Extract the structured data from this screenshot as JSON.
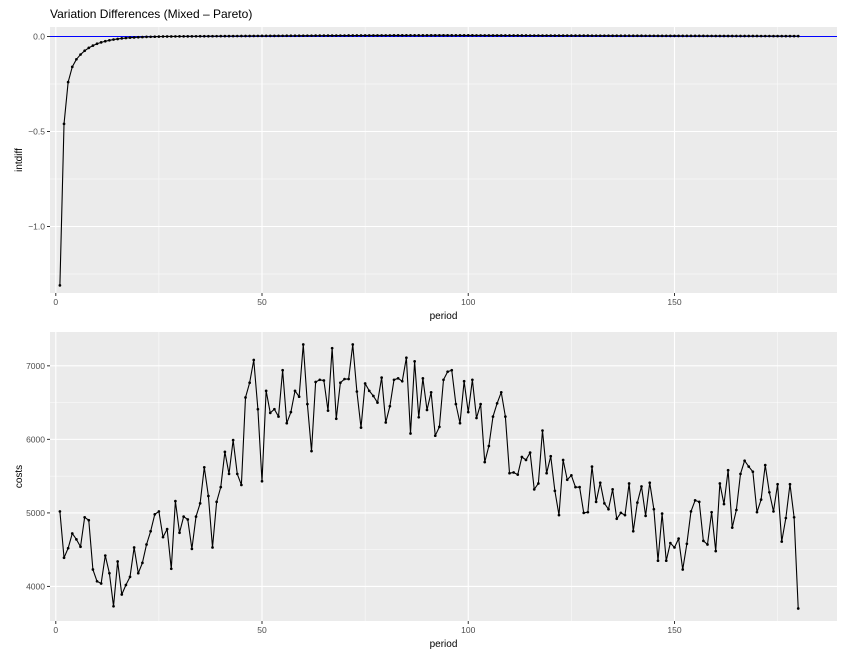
{
  "chart_data": [
    {
      "type": "line",
      "title": "Variation Differences (Mixed – Pareto)",
      "xlabel": "period",
      "ylabel": "intdiff",
      "xlim": [
        -1.4,
        189.4
      ],
      "ylim": [
        -1.35,
        0.05
      ],
      "x_major_ticks": [
        0,
        50,
        100,
        150
      ],
      "x_tick_labels": [
        "0",
        "50",
        "100",
        "150"
      ],
      "x_minor_ticks": [
        25,
        75,
        125,
        175
      ],
      "y_major_ticks": [
        -1.0,
        -0.5,
        0.0
      ],
      "y_tick_labels": [
        "−1.0",
        "−0.5",
        "0.0"
      ],
      "y_minor_ticks": [
        -1.25,
        -0.75,
        -0.25
      ],
      "hline": {
        "y": 0,
        "color": "#0000ff"
      },
      "grid": true,
      "n_points": 180,
      "first_values": [
        -1.31,
        -0.46,
        -0.24,
        -0.16,
        -0.12,
        -0.095,
        -0.075,
        -0.06,
        -0.048,
        -0.038,
        -0.031,
        -0.025,
        -0.02,
        -0.016,
        -0.013,
        -0.01,
        -0.008,
        -0.006,
        -0.005,
        -0.004,
        -0.003,
        -0.002,
        -0.0015,
        -0.001,
        -0.0005
      ],
      "tail_start_x": 26,
      "tail_start_value": 0.0,
      "tail_peak_x": 95,
      "tail_peak_value": 0.006,
      "tail_end_value": 0.002
    },
    {
      "type": "line",
      "title": "",
      "xlabel": "period",
      "ylabel": "costs",
      "xlim": [
        -1.4,
        189.4
      ],
      "ylim": [
        3530,
        7460
      ],
      "x_major_ticks": [
        0,
        50,
        100,
        150
      ],
      "x_tick_labels": [
        "0",
        "50",
        "100",
        "150"
      ],
      "x_minor_ticks": [
        25,
        75,
        125,
        175
      ],
      "y_major_ticks": [
        4000,
        5000,
        6000,
        7000
      ],
      "y_tick_labels": [
        "4000",
        "5000",
        "6000",
        "7000"
      ],
      "y_minor_ticks": [
        3500,
        4500,
        5500,
        6500
      ],
      "grid": true,
      "x_start": 1,
      "values": [
        5020,
        4390,
        4520,
        4720,
        4640,
        4540,
        4940,
        4900,
        4230,
        4070,
        4040,
        4420,
        4180,
        3730,
        4340,
        3890,
        4020,
        4130,
        4530,
        4180,
        4320,
        4570,
        4750,
        4980,
        5020,
        4670,
        4780,
        4240,
        5160,
        4730,
        4950,
        4910,
        4510,
        4950,
        5130,
        5620,
        5230,
        4530,
        5150,
        5350,
        5830,
        5530,
        5990,
        5530,
        5380,
        6570,
        6770,
        7080,
        6410,
        5430,
        6660,
        6360,
        6410,
        6310,
        6940,
        6220,
        6370,
        6660,
        6580,
        7290,
        6480,
        5840,
        6780,
        6810,
        6800,
        6390,
        7240,
        6280,
        6770,
        6820,
        6820,
        7290,
        6650,
        6160,
        6760,
        6660,
        6590,
        6500,
        6840,
        6230,
        6450,
        6810,
        6830,
        6790,
        7110,
        6080,
        7060,
        6300,
        6830,
        6400,
        6640,
        6050,
        6170,
        6810,
        6920,
        6940,
        6480,
        6220,
        6790,
        6370,
        6810,
        6290,
        6480,
        5690,
        5910,
        6310,
        6490,
        6640,
        6310,
        5540,
        5550,
        5520,
        5760,
        5720,
        5820,
        5320,
        5400,
        6120,
        5540,
        5770,
        5300,
        4970,
        5720,
        5450,
        5510,
        5350,
        5350,
        5000,
        5010,
        5630,
        5150,
        5410,
        5130,
        5050,
        5320,
        4920,
        5000,
        4970,
        5400,
        4750,
        5140,
        5360,
        4960,
        5410,
        5050,
        4350,
        4990,
        4350,
        4590,
        4530,
        4650,
        4230,
        4580,
        5020,
        5170,
        5150,
        4620,
        4570,
        5010,
        4480,
        5400,
        5120,
        5580,
        4800,
        5040,
        5530,
        5710,
        5630,
        5560,
        5010,
        5180,
        5650,
        5280,
        5020,
        5390,
        4610,
        4930,
        5390,
        4940,
        3700
      ]
    }
  ]
}
